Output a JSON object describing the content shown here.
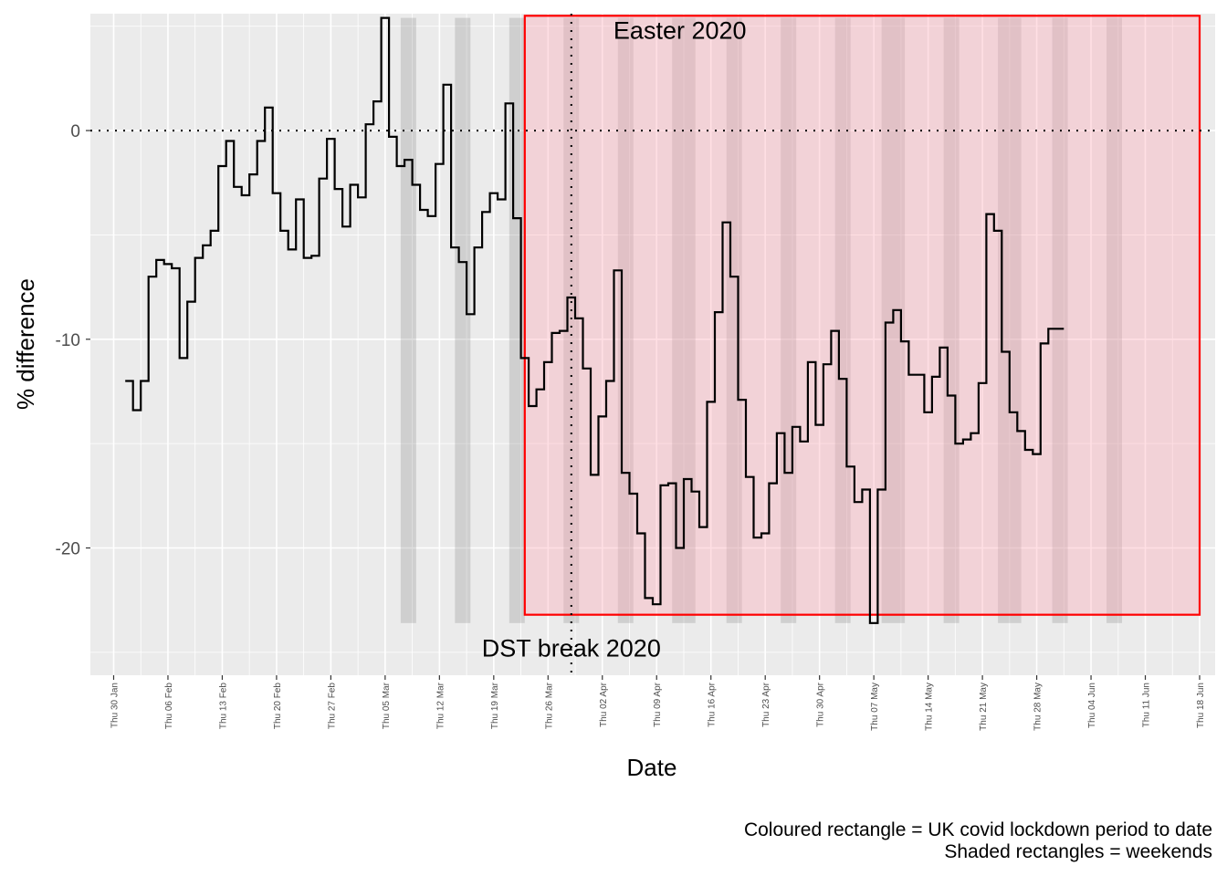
{
  "chart_data": {
    "type": "line",
    "step": true,
    "xlabel": "Date",
    "ylabel": "% difference",
    "ylim": [
      -26.1,
      5.6
    ],
    "xlim": [
      "2020-01-27",
      "2020-06-20"
    ],
    "y_ticks": [
      {
        "value": 0,
        "label": "0"
      },
      {
        "value": -10,
        "label": "-10"
      },
      {
        "value": -20,
        "label": "-20"
      }
    ],
    "x_ticks": [
      {
        "date": "2020-01-30",
        "label": "Thu 30 Jan"
      },
      {
        "date": "2020-02-06",
        "label": "Thu 06 Feb"
      },
      {
        "date": "2020-02-13",
        "label": "Thu 13 Feb"
      },
      {
        "date": "2020-02-20",
        "label": "Thu 20 Feb"
      },
      {
        "date": "2020-02-27",
        "label": "Thu 27 Feb"
      },
      {
        "date": "2020-03-05",
        "label": "Thu 05 Mar"
      },
      {
        "date": "2020-03-12",
        "label": "Thu 12 Mar"
      },
      {
        "date": "2020-03-19",
        "label": "Thu 19 Mar"
      },
      {
        "date": "2020-03-26",
        "label": "Thu 26 Mar"
      },
      {
        "date": "2020-04-02",
        "label": "Thu 02 Apr"
      },
      {
        "date": "2020-04-09",
        "label": "Thu 09 Apr"
      },
      {
        "date": "2020-04-16",
        "label": "Thu 16 Apr"
      },
      {
        "date": "2020-04-23",
        "label": "Thu 23 Apr"
      },
      {
        "date": "2020-04-30",
        "label": "Thu 30 Apr"
      },
      {
        "date": "2020-05-07",
        "label": "Thu 07 May"
      },
      {
        "date": "2020-05-14",
        "label": "Thu 14 May"
      },
      {
        "date": "2020-05-21",
        "label": "Thu 21 May"
      },
      {
        "date": "2020-05-28",
        "label": "Thu 28 May"
      },
      {
        "date": "2020-06-04",
        "label": "Thu 04 Jun"
      },
      {
        "date": "2020-06-11",
        "label": "Thu 11 Jun"
      },
      {
        "date": "2020-06-18",
        "label": "Thu 18 Jun"
      }
    ],
    "series": [
      {
        "x": [
          "2020-02-01",
          "2020-02-02",
          "2020-02-03",
          "2020-02-04",
          "2020-02-05",
          "2020-02-06",
          "2020-02-07",
          "2020-02-08",
          "2020-02-09",
          "2020-02-10",
          "2020-02-11",
          "2020-02-12",
          "2020-02-13",
          "2020-02-14",
          "2020-02-15",
          "2020-02-16",
          "2020-02-17",
          "2020-02-18",
          "2020-02-19",
          "2020-02-20",
          "2020-02-21",
          "2020-02-22",
          "2020-02-23",
          "2020-02-24",
          "2020-02-25",
          "2020-02-26",
          "2020-02-27",
          "2020-02-28",
          "2020-02-29",
          "2020-03-01",
          "2020-03-02",
          "2020-03-03",
          "2020-03-04",
          "2020-03-05",
          "2020-03-06",
          "2020-03-07",
          "2020-03-08",
          "2020-03-09",
          "2020-03-10",
          "2020-03-11",
          "2020-03-12",
          "2020-03-13",
          "2020-03-14",
          "2020-03-15",
          "2020-03-16",
          "2020-03-17",
          "2020-03-18",
          "2020-03-19",
          "2020-03-20",
          "2020-03-21",
          "2020-03-22",
          "2020-03-23",
          "2020-03-24",
          "2020-03-25",
          "2020-03-26",
          "2020-03-27",
          "2020-03-28",
          "2020-03-29",
          "2020-03-30",
          "2020-03-31",
          "2020-04-01",
          "2020-04-02",
          "2020-04-03",
          "2020-04-04",
          "2020-04-05",
          "2020-04-06",
          "2020-04-07",
          "2020-04-08",
          "2020-04-09",
          "2020-04-10",
          "2020-04-11",
          "2020-04-12",
          "2020-04-13",
          "2020-04-14",
          "2020-04-15",
          "2020-04-16",
          "2020-04-17",
          "2020-04-18",
          "2020-04-19",
          "2020-04-20",
          "2020-04-21",
          "2020-04-22",
          "2020-04-23",
          "2020-04-24",
          "2020-04-25",
          "2020-04-26",
          "2020-04-27",
          "2020-04-28",
          "2020-04-29",
          "2020-04-30",
          "2020-05-01",
          "2020-05-02",
          "2020-05-03",
          "2020-05-04",
          "2020-05-05",
          "2020-05-06",
          "2020-05-07",
          "2020-05-08",
          "2020-05-09",
          "2020-05-10",
          "2020-05-11",
          "2020-05-12",
          "2020-05-13",
          "2020-05-14",
          "2020-05-15",
          "2020-05-16",
          "2020-05-17",
          "2020-05-18",
          "2020-05-19",
          "2020-05-20",
          "2020-05-21",
          "2020-05-22",
          "2020-05-23",
          "2020-05-24",
          "2020-05-25",
          "2020-05-26",
          "2020-05-27",
          "2020-05-28",
          "2020-05-29",
          "2020-05-30",
          "2020-05-31"
        ],
        "values": [
          -12.0,
          -13.4,
          -12.0,
          -7.0,
          -6.2,
          -6.4,
          -6.6,
          -10.9,
          -8.2,
          -6.1,
          -5.5,
          -4.8,
          -1.7,
          -0.5,
          -2.7,
          -3.1,
          -2.1,
          -0.5,
          1.1,
          -3.0,
          -4.8,
          -5.7,
          -3.3,
          -6.1,
          -6.0,
          -2.3,
          -0.4,
          -2.8,
          -4.6,
          -2.6,
          -3.2,
          0.3,
          1.4,
          5.4,
          -0.3,
          -1.7,
          -1.4,
          -2.6,
          -3.8,
          -4.1,
          -1.6,
          2.2,
          -5.6,
          -6.3,
          -8.8,
          -5.6,
          -3.9,
          -3.0,
          -3.3,
          1.3,
          -4.2,
          -10.9,
          -13.2,
          -12.4,
          -11.1,
          -9.7,
          -9.6,
          -8.0,
          -9.0,
          -11.4,
          -16.5,
          -13.7,
          -12.0,
          -6.7,
          -16.4,
          -17.4,
          -19.3,
          -22.4,
          -22.7,
          -17.0,
          -16.9,
          -20.0,
          -16.7,
          -17.3,
          -19.0,
          -13.0,
          -8.7,
          -4.4,
          -7.0,
          -12.9,
          -16.6,
          -19.5,
          -19.3,
          -16.9,
          -14.5,
          -16.4,
          -14.2,
          -14.9,
          -11.1,
          -14.1,
          -11.2,
          -9.6,
          -11.9,
          -16.1,
          -17.8,
          -17.2,
          -23.6,
          -17.2,
          -9.2,
          -8.6,
          -10.1,
          -11.7,
          -11.7,
          -13.5,
          -11.8,
          -10.4,
          -12.7,
          -15.0,
          -14.8,
          -14.5,
          -12.1,
          -4.0,
          -4.8,
          -10.6,
          -13.5,
          -14.4,
          -15.3,
          -15.5,
          -10.2,
          -9.5,
          -9.5
        ]
      }
    ],
    "weekends": [
      {
        "start": "2020-03-07",
        "end": "2020-03-08"
      },
      {
        "start": "2020-03-14",
        "end": "2020-03-15"
      },
      {
        "start": "2020-03-21",
        "end": "2020-03-22"
      },
      {
        "start": "2020-03-28",
        "end": "2020-03-29"
      },
      {
        "start": "2020-04-04",
        "end": "2020-04-05"
      },
      {
        "start": "2020-04-11",
        "end": "2020-04-13"
      },
      {
        "start": "2020-04-18",
        "end": "2020-04-19"
      },
      {
        "start": "2020-04-25",
        "end": "2020-04-26"
      },
      {
        "start": "2020-05-02",
        "end": "2020-05-03"
      },
      {
        "start": "2020-05-08",
        "end": "2020-05-10"
      },
      {
        "start": "2020-05-16",
        "end": "2020-05-17"
      },
      {
        "start": "2020-05-23",
        "end": "2020-05-25"
      },
      {
        "start": "2020-05-30",
        "end": "2020-05-31"
      },
      {
        "start": "2020-06-06",
        "end": "2020-06-07"
      }
    ],
    "weekend_band_y": [
      -23.6,
      5.4
    ],
    "lockdown": {
      "start": "2020-03-23",
      "end": "2020-06-18",
      "y": [
        -23.2,
        5.5
      ]
    },
    "reference_lines": [
      {
        "axis": "y",
        "value": 0,
        "style": "dotted"
      },
      {
        "axis": "x",
        "value": "2020-03-29",
        "style": "dotted"
      }
    ],
    "annotations": [
      {
        "text": "Easter 2020",
        "x": "2020-04-12",
        "y": 4.8
      },
      {
        "text": "DST break 2020",
        "x": "2020-03-29",
        "y": -24.8
      }
    ],
    "grid": true,
    "legend": "none"
  },
  "captions": [
    "Coloured rectangle = UK covid lockdown period to date",
    "Shaded rectangles = weekends"
  ],
  "colors": {
    "panel_background": "#ebebeb",
    "grid_line": "#ffffff",
    "series_line": "#000000",
    "lockdown_fill": "rgba(255,170,185,0.38)",
    "lockdown_border": "#ff0000",
    "weekend_fill": "rgba(110,110,110,0.22)"
  }
}
